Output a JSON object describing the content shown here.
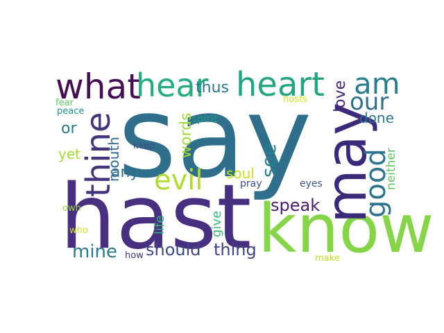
{
  "words": {
    "say": {
      "text": "say",
      "color": "#2f6f8c"
    },
    "hast": {
      "text": "hast",
      "color": "#46307f"
    },
    "know": {
      "text": "know",
      "color": "#86d549"
    },
    "may": {
      "text": "may",
      "color": "#3b2a7a"
    },
    "what": {
      "text": "what",
      "color": "#440f54"
    },
    "hear": {
      "text": "hear",
      "color": "#25ab82"
    },
    "heart": {
      "text": "heart",
      "color": "#23a483"
    },
    "am": {
      "text": "am",
      "color": "#287d8e"
    },
    "our": {
      "text": "our",
      "color": "#2d718e"
    },
    "thine": {
      "text": "thine",
      "color": "#45337d"
    },
    "evil": {
      "text": "evil",
      "color": "#b0dd2f"
    },
    "good": {
      "text": "good",
      "color": "#2c738e"
    },
    "thus": {
      "text": "thus",
      "color": "#2a788e"
    },
    "love": {
      "text": "love",
      "color": "#482475"
    },
    "done": {
      "text": "done",
      "color": "#2a778e"
    },
    "fear": {
      "text": "fear",
      "color": "#5ec962"
    },
    "peace": {
      "text": "peace",
      "color": "#21908d"
    },
    "hosts": {
      "text": "hosts",
      "color": "#d8e219"
    },
    "spirit": {
      "text": "spirit",
      "color": "#1e9b8a"
    },
    "or": {
      "text": "or",
      "color": "#2a788e"
    },
    "words": {
      "text": "words",
      "color": "#a2da37"
    },
    "yet": {
      "text": "yet",
      "color": "#a5db36"
    },
    "keep": {
      "text": "keep",
      "color": "#3e4a89"
    },
    "mouth": {
      "text": "mouth",
      "color": "#31688e"
    },
    "neither": {
      "text": "neither",
      "color": "#5ec962"
    },
    "see": {
      "text": "see",
      "color": "#27808e"
    },
    "any": {
      "text": "any",
      "color": "#2e6e8e"
    },
    "soul": {
      "text": "soul",
      "color": "#c8e020"
    },
    "pray": {
      "text": "pray",
      "color": "#3e4c8a"
    },
    "eyes": {
      "text": "eyes",
      "color": "#3b528b"
    },
    "speak": {
      "text": "speak",
      "color": "#481c6e"
    },
    "own": {
      "text": "own",
      "color": "#95d840"
    },
    "life": {
      "text": "life",
      "color": "#2db27d"
    },
    "give": {
      "text": "give",
      "color": "#3aba76"
    },
    "who": {
      "text": "who",
      "color": "#d0e11c"
    },
    "mine": {
      "text": "mine",
      "color": "#2a788e"
    },
    "should": {
      "text": "should",
      "color": "#3f4788"
    },
    "thing": {
      "text": "thing",
      "color": "#404387"
    },
    "how": {
      "text": "how",
      "color": "#472d7b"
    },
    "make": {
      "text": "make",
      "color": "#c2df23"
    }
  }
}
